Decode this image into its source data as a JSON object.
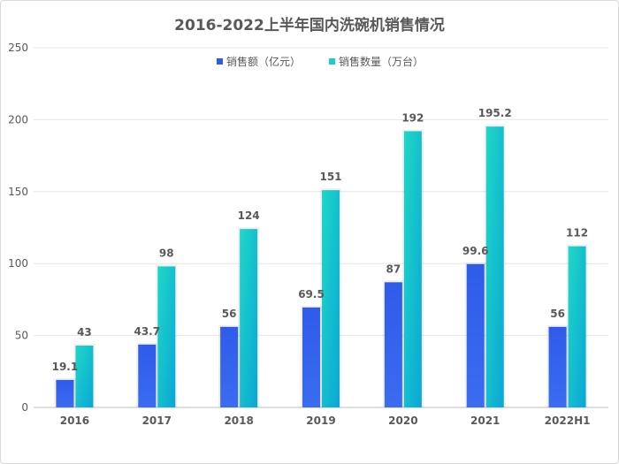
{
  "chart_data": {
    "type": "bar",
    "title": "2016-2022上半年国内洗碗机销售情况",
    "categories": [
      "2016",
      "2017",
      "2018",
      "2019",
      "2020",
      "2021",
      "2022H1"
    ],
    "series": [
      {
        "name": "销售额（亿元）",
        "values": [
          19.1,
          43.7,
          56,
          69.5,
          87,
          99.6,
          56
        ],
        "color": "#2f5bea"
      },
      {
        "name": "销售数量（万台）",
        "values": [
          43,
          98,
          124,
          151,
          192,
          195.2,
          112
        ],
        "color": "#18d1c4"
      }
    ],
    "yticks": [
      0,
      50,
      100,
      150,
      200,
      250
    ],
    "ylim": [
      0,
      250
    ],
    "grid": true,
    "legend_position": "top"
  }
}
